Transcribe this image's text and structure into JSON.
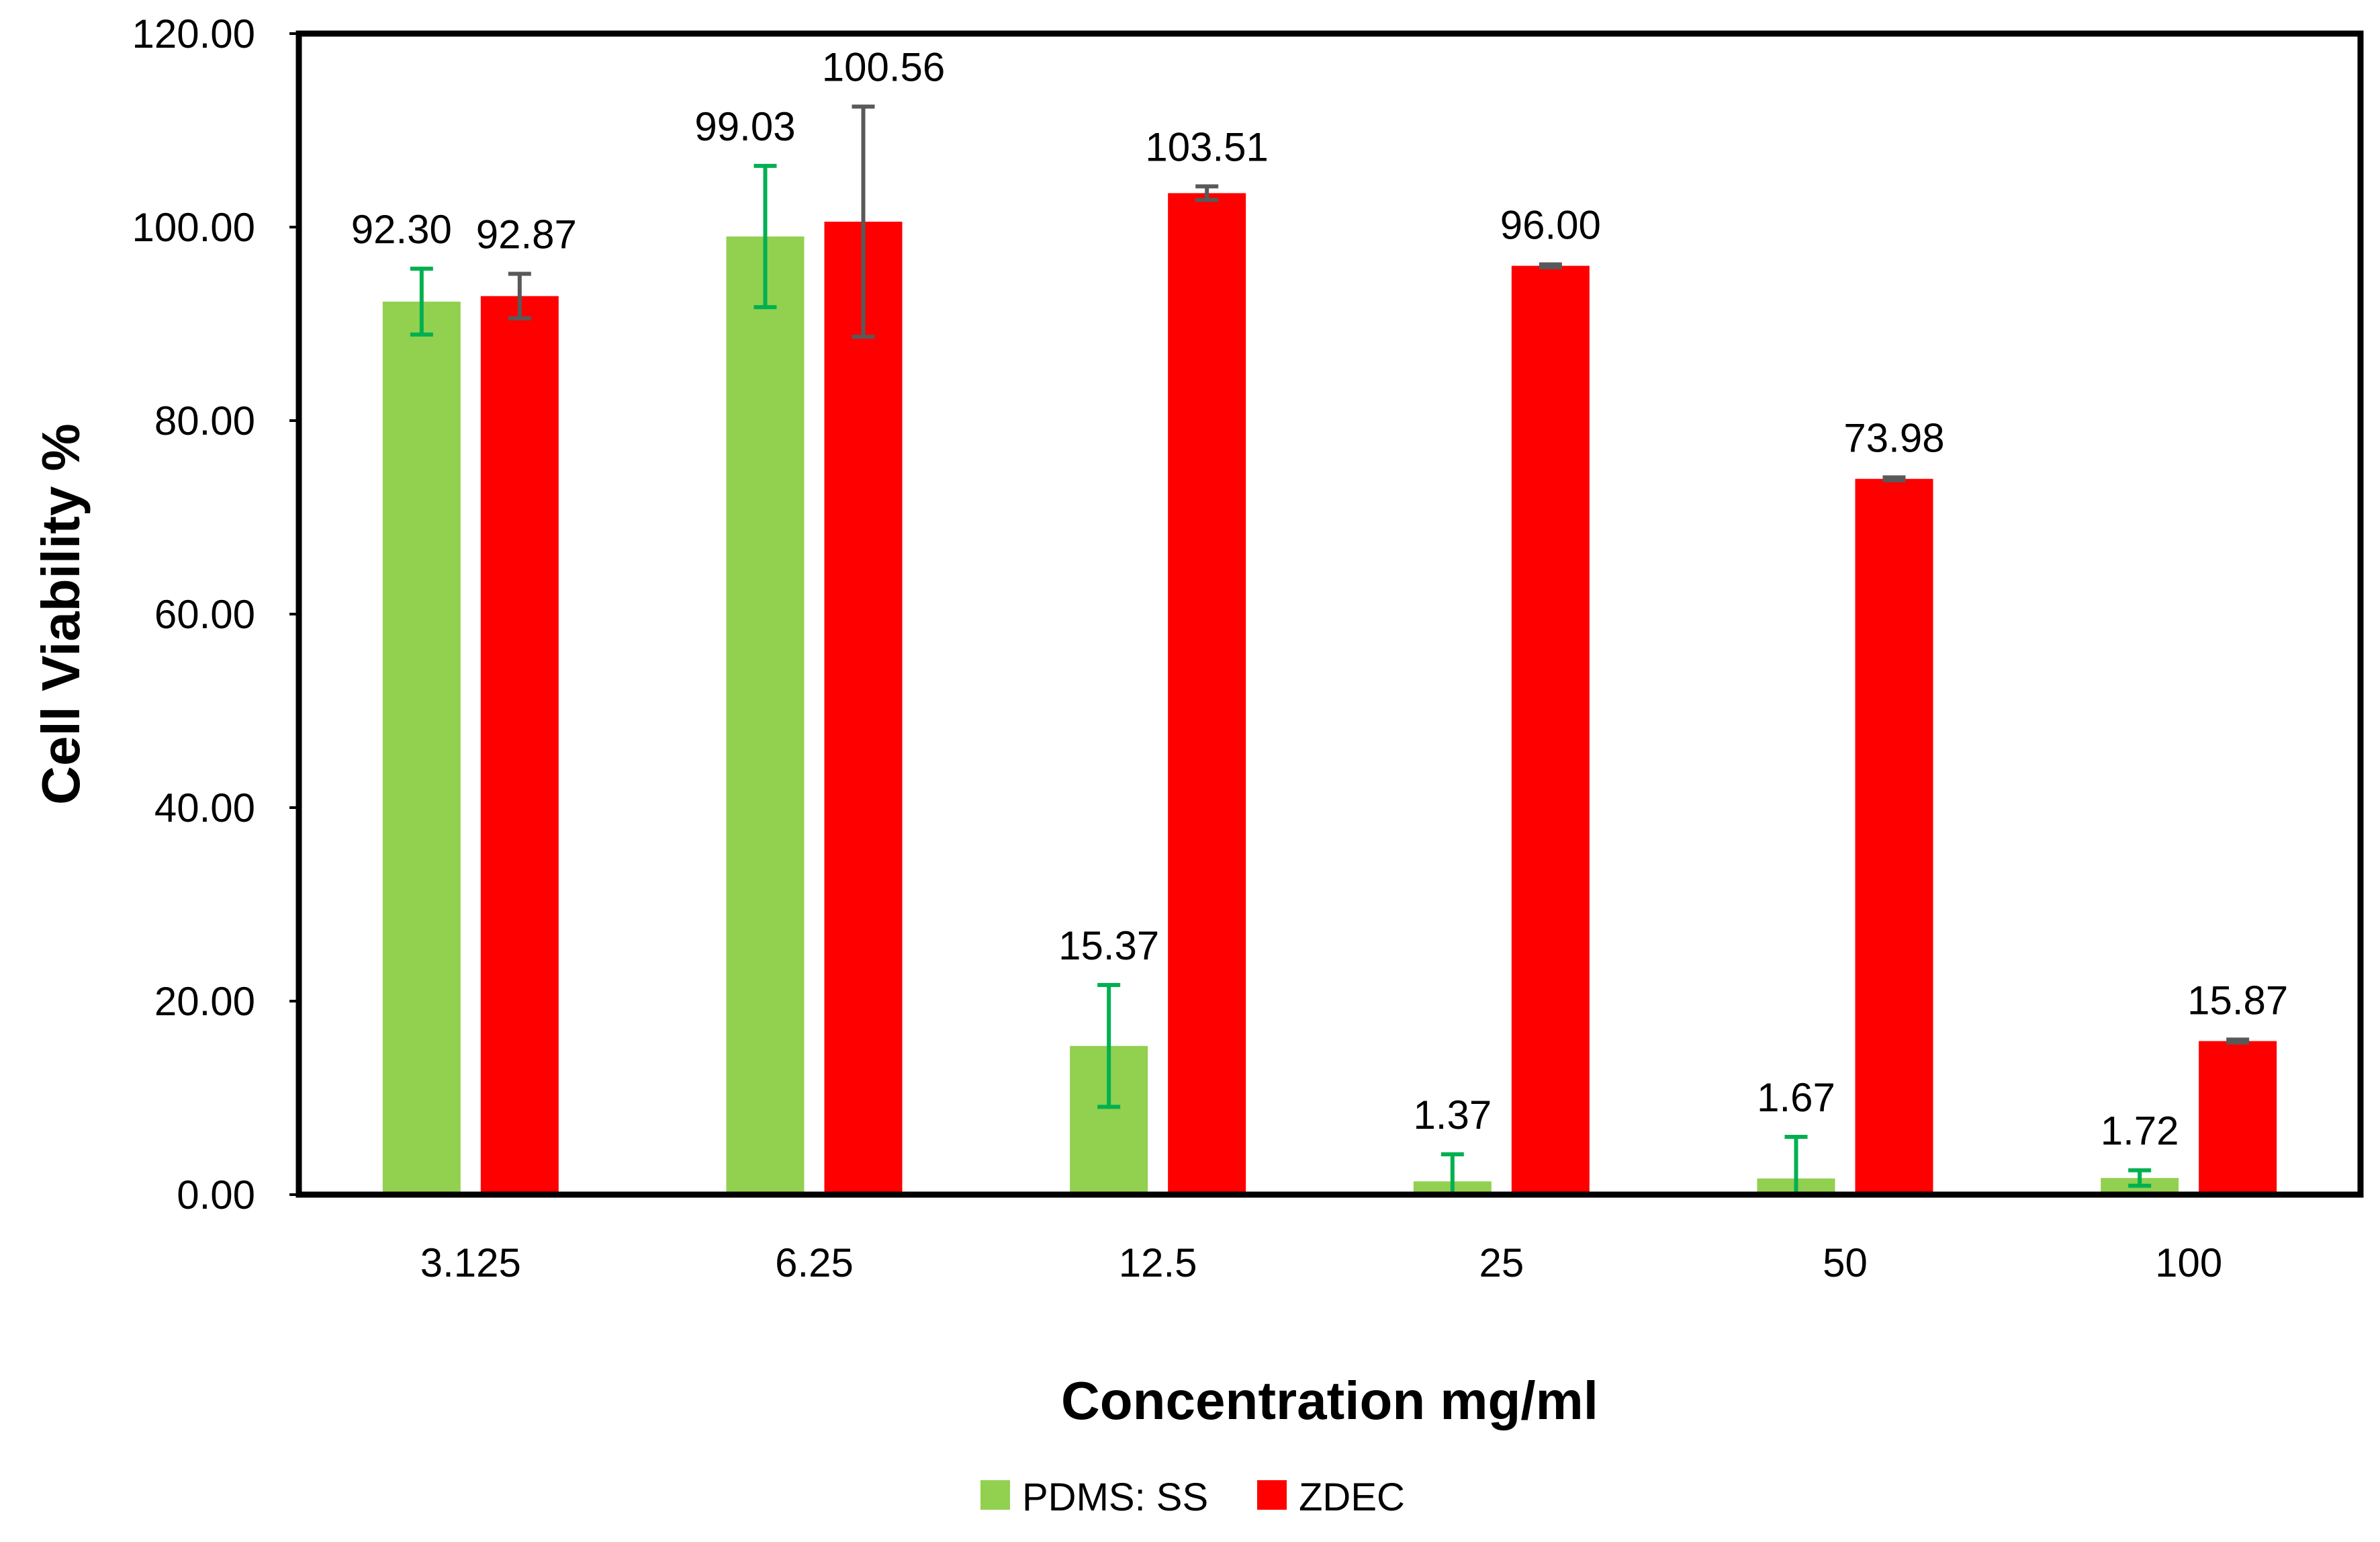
{
  "chart_data": {
    "type": "bar",
    "title": "",
    "xlabel": "Concentration mg/ml",
    "ylabel": "Cell Viability %",
    "categories": [
      "3.125",
      "6.25",
      "12.5",
      "25",
      "50",
      "100"
    ],
    "ylim": [
      0,
      120
    ],
    "yticks": [
      "0.00",
      "20.00",
      "40.00",
      "60.00",
      "80.00",
      "100.00",
      "120.00"
    ],
    "grid": false,
    "legend_position": "bottom-center",
    "series": [
      {
        "name": "PDMS: SS",
        "color": "#92D050",
        "errorbar_color": "#00B050",
        "values": [
          92.3,
          99.03,
          15.37,
          1.37,
          1.67,
          1.72
        ],
        "labels": [
          "92.30",
          "99.03",
          "15.37",
          "1.37",
          "1.67",
          "1.72"
        ],
        "errors": [
          3.4,
          7.3,
          6.3,
          2.8,
          4.3,
          0.8
        ]
      },
      {
        "name": "ZDEC",
        "color": "#FF0000",
        "errorbar_color": "#595959",
        "values": [
          92.87,
          100.56,
          103.51,
          96.0,
          73.98,
          15.87
        ],
        "labels": [
          "92.87",
          "100.56",
          "103.51",
          "96.00",
          "73.98",
          "15.87"
        ],
        "errors": [
          2.3,
          11.9,
          0.7,
          0.15,
          0.15,
          0.15
        ]
      }
    ]
  }
}
